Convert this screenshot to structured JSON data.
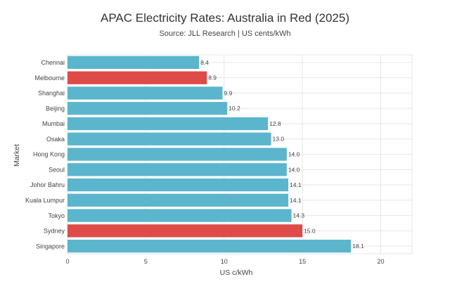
{
  "chart_data": {
    "type": "bar",
    "orientation": "horizontal",
    "title": "APAC Electricity Rates: Australia in Red (2025)",
    "subtitle": "Source: JLL Research | US cents/kWh",
    "xlabel": "US c/kWh",
    "ylabel": "Market",
    "xlim": [
      0,
      22
    ],
    "xticks": [
      0,
      5,
      10,
      15,
      20
    ],
    "grid": true,
    "categories": [
      "Chennai",
      "Melbourne",
      "Shanghai",
      "Beijing",
      "Mumbai",
      "Osaka",
      "Hong Kong",
      "Seoul",
      "Johor Bahru",
      "Kuala Lumpur",
      "Tokyo",
      "Sydney",
      "Singapore"
    ],
    "values": [
      8.4,
      8.9,
      9.9,
      10.2,
      12.8,
      13.0,
      14.0,
      14.0,
      14.1,
      14.1,
      14.3,
      15.0,
      18.1
    ],
    "data_labels": [
      "8.4",
      "8.9",
      "9.9",
      "10.2",
      "12.8",
      "13.0",
      "14.0",
      "14.0",
      "14.1",
      "14.1",
      "14.3",
      "15.0",
      "18.1"
    ],
    "highlighted": [
      "Melbourne",
      "Sydney"
    ],
    "colors": {
      "default": "#5bb5cd",
      "highlight": "#de4b48",
      "grid": "#e6e6e6"
    }
  }
}
